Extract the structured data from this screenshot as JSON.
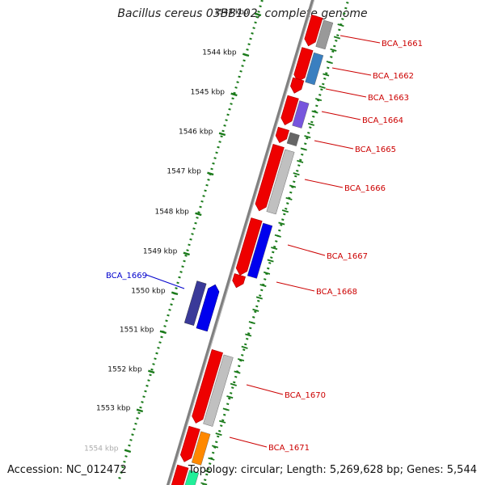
{
  "title": "Bacillus cereus 03BB102, complete genome",
  "footer": {
    "accession": "Accession: NC_012472",
    "summary": "Topology: circular; Length: 5,269,628 bp; Genes: 5,544"
  },
  "ruler": {
    "unit_label": "kbp",
    "ticks": [
      {
        "label": "1543 kbp"
      },
      {
        "label": "1544 kbp"
      },
      {
        "label": "1545 kbp"
      },
      {
        "label": "1546 kbp"
      },
      {
        "label": "1547 kbp"
      },
      {
        "label": "1548 kbp"
      },
      {
        "label": "1549 kbp"
      },
      {
        "label": "1550 kbp"
      },
      {
        "label": "1551 kbp"
      },
      {
        "label": "1552 kbp"
      },
      {
        "label": "1553 kbp"
      },
      {
        "label": "1554 kbp"
      }
    ]
  },
  "genes": [
    {
      "label": "BCA_1661",
      "strand": "forward",
      "label_color": "#cc0000"
    },
    {
      "label": "BCA_1662",
      "strand": "forward",
      "label_color": "#cc0000"
    },
    {
      "label": "BCA_1663",
      "strand": "forward",
      "label_color": "#cc0000"
    },
    {
      "label": "BCA_1664",
      "strand": "forward",
      "label_color": "#cc0000"
    },
    {
      "label": "BCA_1665",
      "strand": "forward",
      "label_color": "#cc0000"
    },
    {
      "label": "BCA_1666",
      "strand": "forward",
      "label_color": "#cc0000"
    },
    {
      "label": "BCA_1667",
      "strand": "forward",
      "label_color": "#cc0000"
    },
    {
      "label": "BCA_1668",
      "strand": "forward",
      "label_color": "#cc0000"
    },
    {
      "label": "BCA_1669",
      "strand": "reverse",
      "label_color": "#0000cc"
    },
    {
      "label": "BCA_1670",
      "strand": "forward",
      "label_color": "#cc0000"
    },
    {
      "label": "BCA_1671",
      "strand": "forward",
      "label_color": "#cc0000"
    }
  ],
  "colors": {
    "forward_cds": "#ee0000",
    "reverse_cds": "#0000ee",
    "backbone": "#808080",
    "tick": "#1a7a1a",
    "cog_gray": "#999999",
    "cog_steelblue": "#3a7fc0",
    "cog_purple": "#7755dd",
    "cog_dark_gray": "#666666",
    "cog_light_gray": "#c0c0c0",
    "cog_navy": "#3a3a99",
    "cog_orange": "#ff8800",
    "cog_green": "#22ee99"
  }
}
